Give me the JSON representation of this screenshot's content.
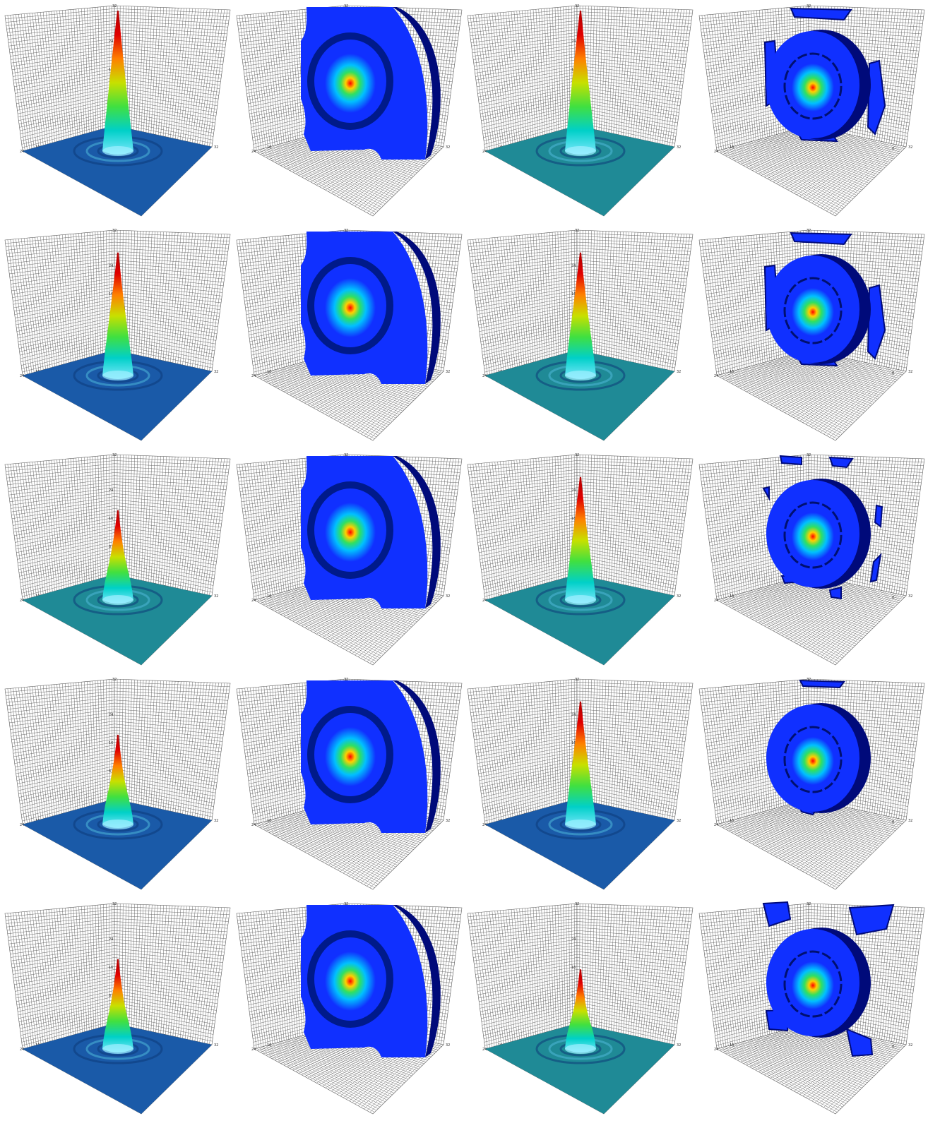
{
  "figure": {
    "rows": 5,
    "columns": 4,
    "colors": {
      "grid_line": "#5a5a5a",
      "colormap": [
        "#0000ff",
        "#00bfff",
        "#00ff80",
        "#ffff00",
        "#ff0000"
      ],
      "slab_blue": "#1030ff",
      "slab_shadow": "#000a7a",
      "floor_blue": "#1a5aa8",
      "floor_teal": "#1f8a96"
    },
    "axis_tick_text": [
      "32",
      "24",
      "16",
      "8",
      "32",
      "24",
      "16",
      "8"
    ],
    "panels": [
      {
        "kind": "peak-surface",
        "peak_height": 0.97,
        "floor": "blue"
      },
      {
        "kind": "isosurface-slab",
        "variant": "full-slab"
      },
      {
        "kind": "peak-surface",
        "peak_height": 0.97,
        "floor": "teal"
      },
      {
        "kind": "isosurface-disk",
        "variant": "fragments-top-sides-bottom"
      },
      {
        "kind": "peak-surface",
        "peak_height": 0.85,
        "floor": "blue"
      },
      {
        "kind": "isosurface-slab",
        "variant": "full-slab"
      },
      {
        "kind": "peak-surface",
        "peak_height": 0.85,
        "floor": "teal"
      },
      {
        "kind": "isosurface-disk",
        "variant": "fragments-top-sides-bottom"
      },
      {
        "kind": "peak-surface",
        "peak_height": 0.62,
        "floor": "teal"
      },
      {
        "kind": "isosurface-slab",
        "variant": "full-slab"
      },
      {
        "kind": "peak-surface",
        "peak_height": 0.85,
        "floor": "teal"
      },
      {
        "kind": "isosurface-disk",
        "variant": "small-fragments"
      },
      {
        "kind": "peak-surface",
        "peak_height": 0.62,
        "floor": "blue"
      },
      {
        "kind": "isosurface-slab",
        "variant": "full-slab"
      },
      {
        "kind": "peak-surface",
        "peak_height": 0.85,
        "floor": "blue"
      },
      {
        "kind": "isosurface-disk",
        "variant": "top-bottom-fragments"
      },
      {
        "kind": "peak-surface",
        "peak_height": 0.62,
        "floor": "blue"
      },
      {
        "kind": "isosurface-slab",
        "variant": "full-slab"
      },
      {
        "kind": "peak-surface",
        "peak_height": 0.55,
        "floor": "teal"
      },
      {
        "kind": "isosurface-disk",
        "variant": "corner-fragments"
      }
    ]
  }
}
